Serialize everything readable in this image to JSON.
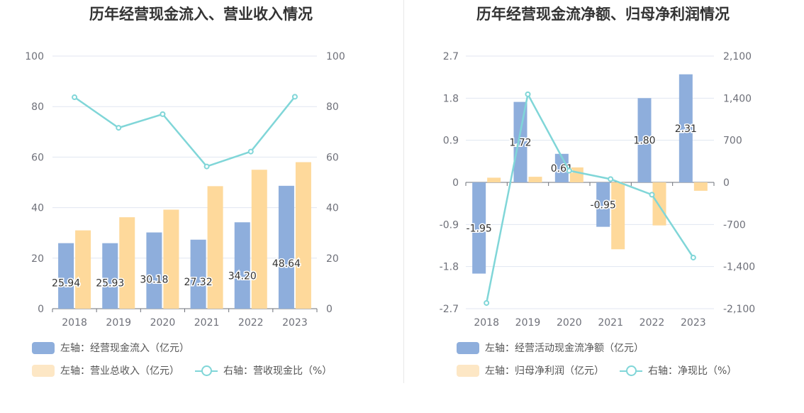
{
  "chart_data": [
    {
      "type": "bar",
      "title": "历年经营现金流入、营业收入情况",
      "categories": [
        "2018",
        "2019",
        "2020",
        "2021",
        "2022",
        "2023"
      ],
      "left_axis": {
        "min": 0,
        "max": 100,
        "ticks": [
          "0",
          "20",
          "40",
          "60",
          "80",
          "100"
        ]
      },
      "right_axis": {
        "min": 0,
        "max": 100,
        "ticks": [
          "0",
          "20",
          "40",
          "60",
          "80",
          "100"
        ]
      },
      "series": [
        {
          "name": "左轴：经营现金流入（亿元）",
          "type": "bar",
          "axis": "left",
          "color": "#8eaedc",
          "values": [
            25.94,
            25.93,
            30.18,
            27.32,
            34.2,
            48.64
          ],
          "labels": [
            "25.94",
            "25.93",
            "30.18",
            "27.32",
            "34.20",
            "48.64"
          ]
        },
        {
          "name": "左轴：营业总收入（亿元）",
          "type": "bar",
          "axis": "left",
          "color": "#fed99b",
          "values": [
            31.0,
            36.2,
            39.2,
            48.5,
            55.0,
            58.0
          ]
        },
        {
          "name": "右轴：营收现金比（%）",
          "type": "line",
          "axis": "right",
          "color": "#80d6d8",
          "values": [
            83.7,
            71.6,
            77.0,
            56.3,
            62.2,
            83.9
          ]
        }
      ],
      "legend_rows": [
        [
          "左轴：经营现金流入（亿元）"
        ],
        [
          "左轴：营业总收入（亿元）",
          "右轴：营收现金比（%）"
        ]
      ],
      "legend_swatches": [
        "#8eaedc",
        "#fde7c5",
        "line"
      ]
    },
    {
      "type": "bar",
      "title": "历年经营现金流净额、归母净利润情况",
      "categories": [
        "2018",
        "2019",
        "2020",
        "2021",
        "2022",
        "2023"
      ],
      "left_axis": {
        "min": -2.7,
        "max": 2.7,
        "ticks": [
          "-2.7",
          "-1.8",
          "-0.9",
          "0",
          "0.9",
          "1.8",
          "2.7"
        ]
      },
      "right_axis": {
        "min": -2100,
        "max": 2100,
        "ticks": [
          "-2,100",
          "-1,400",
          "-700",
          "0",
          "700",
          "1,400",
          "2,100"
        ]
      },
      "series": [
        {
          "name": "左轴：经营活动现金流净额（亿元）",
          "type": "bar",
          "axis": "left",
          "color": "#8eaedc",
          "values": [
            -1.95,
            1.72,
            0.61,
            -0.95,
            1.8,
            2.31
          ],
          "labels": [
            "-1.95",
            "1.72",
            "0.61",
            "-0.95",
            "1.80",
            "2.31"
          ]
        },
        {
          "name": "左轴：归母净利润（亿元）",
          "type": "bar",
          "axis": "left",
          "color": "#fed99b",
          "values": [
            0.1,
            0.12,
            0.32,
            -1.43,
            -0.92,
            -0.18
          ]
        },
        {
          "name": "右轴：净现比（%）",
          "type": "line",
          "axis": "right",
          "color": "#80d6d8",
          "values": [
            -2005,
            1465,
            195,
            55,
            -205,
            -1250
          ]
        }
      ],
      "legend_rows": [
        [
          "左轴：经营活动现金流净额（亿元）"
        ],
        [
          "左轴：归母净利润（亿元）",
          "右轴：净现比（%）"
        ]
      ],
      "legend_swatches": [
        "#8eaedc",
        "#fde7c5",
        "line"
      ]
    }
  ]
}
